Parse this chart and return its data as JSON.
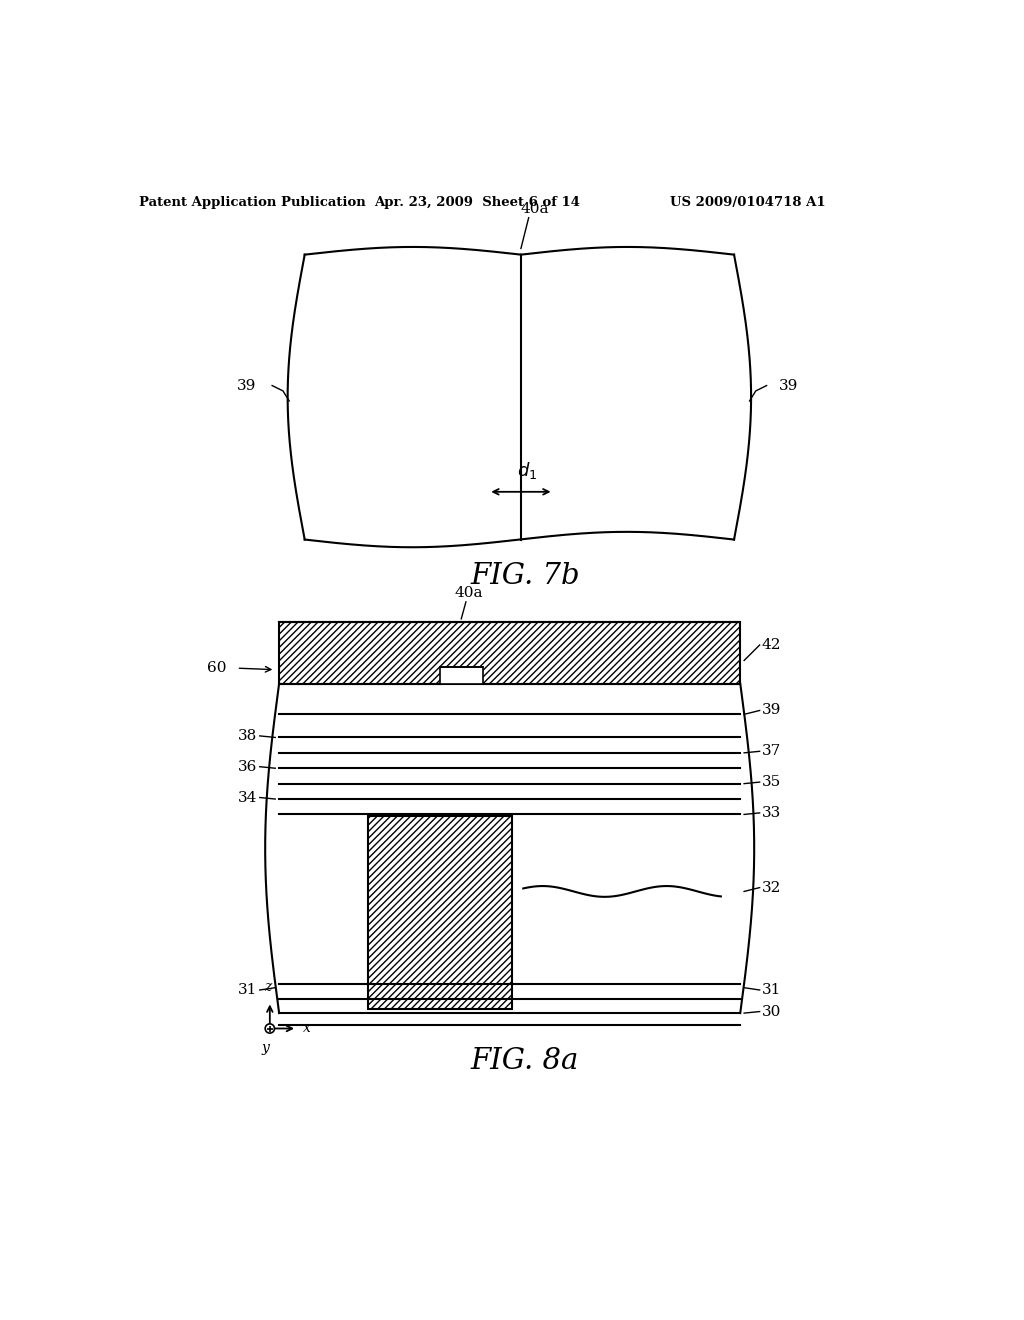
{
  "header_left": "Patent Application Publication",
  "header_mid": "Apr. 23, 2009  Sheet 6 of 14",
  "header_right": "US 2009/0104718 A1",
  "fig7b_caption": "FIG. 7b",
  "fig8a_caption": "FIG. 8a",
  "bg_color": "#ffffff",
  "line_color": "#000000",
  "fig7b": {
    "label_40a": "40a",
    "label_39_left": "39",
    "label_39_right": "39",
    "label_d1": "d1"
  },
  "fig8a": {
    "label_40a": "40a",
    "label_42": "42",
    "label_60": "60",
    "label_39": "39",
    "label_38": "38",
    "label_37": "37",
    "label_36": "36",
    "label_35": "35",
    "label_34": "34",
    "label_33": "33",
    "label_32": "32",
    "label_31_left": "31",
    "label_31_right": "31",
    "label_30": "30"
  }
}
